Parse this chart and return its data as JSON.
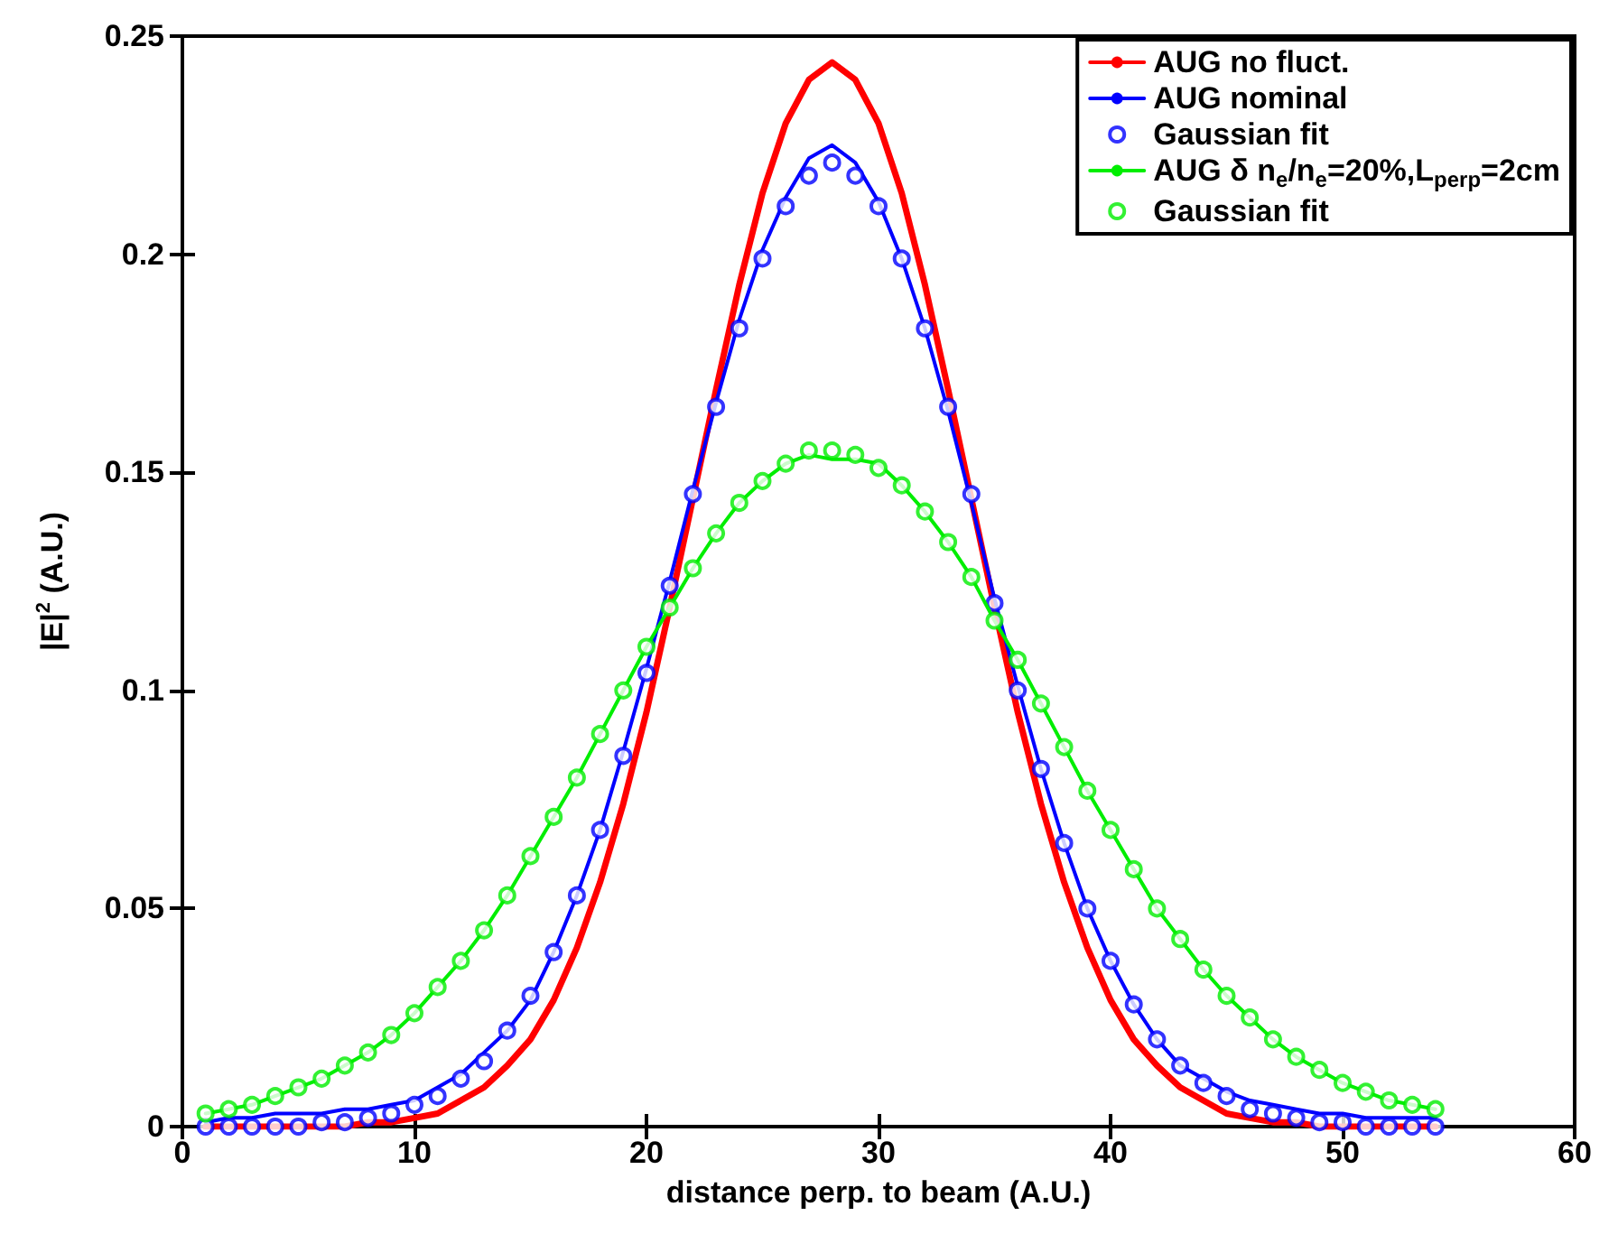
{
  "chart_data": {
    "type": "line",
    "xlabel": "distance perp. to beam (A.U.)",
    "ylabel": "|E|$^{2}$ (A.U.)",
    "x": [
      1,
      2,
      3,
      4,
      5,
      6,
      7,
      8,
      9,
      10,
      11,
      12,
      13,
      14,
      15,
      16,
      17,
      18,
      19,
      20,
      21,
      22,
      23,
      24,
      25,
      26,
      27,
      28,
      29,
      30,
      31,
      32,
      33,
      34,
      35,
      36,
      37,
      38,
      39,
      40,
      41,
      42,
      43,
      44,
      45,
      46,
      47,
      48,
      49,
      50,
      51,
      52,
      53,
      54
    ],
    "xlim": [
      0,
      60
    ],
    "xticks": [
      0,
      10,
      20,
      30,
      40,
      50,
      60
    ],
    "ylim": [
      0,
      0.25
    ],
    "yticks": [
      0,
      0.05,
      0.1,
      0.15,
      0.2,
      0.25
    ],
    "grid": false,
    "legend": "top right",
    "series": [
      {
        "name": "AUG no fluct.",
        "color": "#ff0000",
        "marker": "none",
        "values": [
          0,
          0,
          0,
          0,
          0,
          0,
          0,
          0.001,
          0.001,
          0.002,
          0.003,
          0.006,
          0.009,
          0.014,
          0.02,
          0.029,
          0.041,
          0.056,
          0.074,
          0.095,
          0.119,
          0.144,
          0.169,
          0.193,
          0.214,
          0.23,
          0.24,
          0.244,
          0.24,
          0.23,
          0.214,
          0.193,
          0.169,
          0.144,
          0.119,
          0.095,
          0.074,
          0.056,
          0.041,
          0.029,
          0.02,
          0.014,
          0.009,
          0.006,
          0.003,
          0.002,
          0.001,
          0.001,
          0,
          0,
          0,
          0,
          0,
          0
        ]
      },
      {
        "name": "AUG nominal",
        "color": "#0000ff",
        "marker": "none",
        "values": [
          0.001,
          0.002,
          0.002,
          0.003,
          0.003,
          0.003,
          0.004,
          0.004,
          0.005,
          0.006,
          0.009,
          0.012,
          0.017,
          0.022,
          0.029,
          0.04,
          0.053,
          0.068,
          0.086,
          0.105,
          0.125,
          0.146,
          0.166,
          0.185,
          0.201,
          0.213,
          0.222,
          0.225,
          0.221,
          0.212,
          0.199,
          0.183,
          0.164,
          0.143,
          0.121,
          0.101,
          0.082,
          0.065,
          0.05,
          0.038,
          0.028,
          0.02,
          0.014,
          0.011,
          0.008,
          0.006,
          0.005,
          0.004,
          0.003,
          0.003,
          0.002,
          0.002,
          0.002,
          0.002
        ]
      },
      {
        "name": "Gaussian fit",
        "color": "#0000ff",
        "type": "scatter",
        "marker": "circle",
        "values": [
          0,
          0,
          0,
          0,
          0,
          0.001,
          0.001,
          0.002,
          0.003,
          0.005,
          0.007,
          0.011,
          0.015,
          0.022,
          0.03,
          0.04,
          0.053,
          0.068,
          0.085,
          0.104,
          0.124,
          0.145,
          0.165,
          0.183,
          0.199,
          0.211,
          0.218,
          0.221,
          0.218,
          0.211,
          0.199,
          0.183,
          0.165,
          0.145,
          0.12,
          0.1,
          0.082,
          0.065,
          0.05,
          0.038,
          0.028,
          0.02,
          0.014,
          0.01,
          0.007,
          0.004,
          0.003,
          0.002,
          0.001,
          0.001,
          0,
          0,
          0,
          0
        ]
      },
      {
        "name": "AUG δ n$_{e}$/n$_{e}$=20%,L$_{perp}$=2cm",
        "color": "#00ee00",
        "marker": "none",
        "values": [
          0.003,
          0.004,
          0.005,
          0.007,
          0.009,
          0.011,
          0.014,
          0.017,
          0.021,
          0.026,
          0.032,
          0.038,
          0.045,
          0.053,
          0.062,
          0.071,
          0.08,
          0.09,
          0.1,
          0.11,
          0.119,
          0.128,
          0.136,
          0.143,
          0.148,
          0.152,
          0.154,
          0.153,
          0.153,
          0.152,
          0.147,
          0.141,
          0.134,
          0.126,
          0.116,
          0.107,
          0.097,
          0.087,
          0.077,
          0.068,
          0.059,
          0.05,
          0.043,
          0.036,
          0.03,
          0.025,
          0.02,
          0.016,
          0.013,
          0.01,
          0.008,
          0.006,
          0.005,
          0.004
        ]
      },
      {
        "name": "Gaussian fit",
        "color": "#00ee00",
        "type": "scatter",
        "marker": "circle",
        "values": [
          0.003,
          0.004,
          0.005,
          0.007,
          0.009,
          0.011,
          0.014,
          0.017,
          0.021,
          0.026,
          0.032,
          0.038,
          0.045,
          0.053,
          0.062,
          0.071,
          0.08,
          0.09,
          0.1,
          0.11,
          0.119,
          0.128,
          0.136,
          0.143,
          0.148,
          0.152,
          0.155,
          0.155,
          0.154,
          0.151,
          0.147,
          0.141,
          0.134,
          0.126,
          0.116,
          0.107,
          0.097,
          0.087,
          0.077,
          0.068,
          0.059,
          0.05,
          0.043,
          0.036,
          0.03,
          0.025,
          0.02,
          0.016,
          0.013,
          0.01,
          0.008,
          0.006,
          0.005,
          0.004
        ]
      }
    ]
  }
}
